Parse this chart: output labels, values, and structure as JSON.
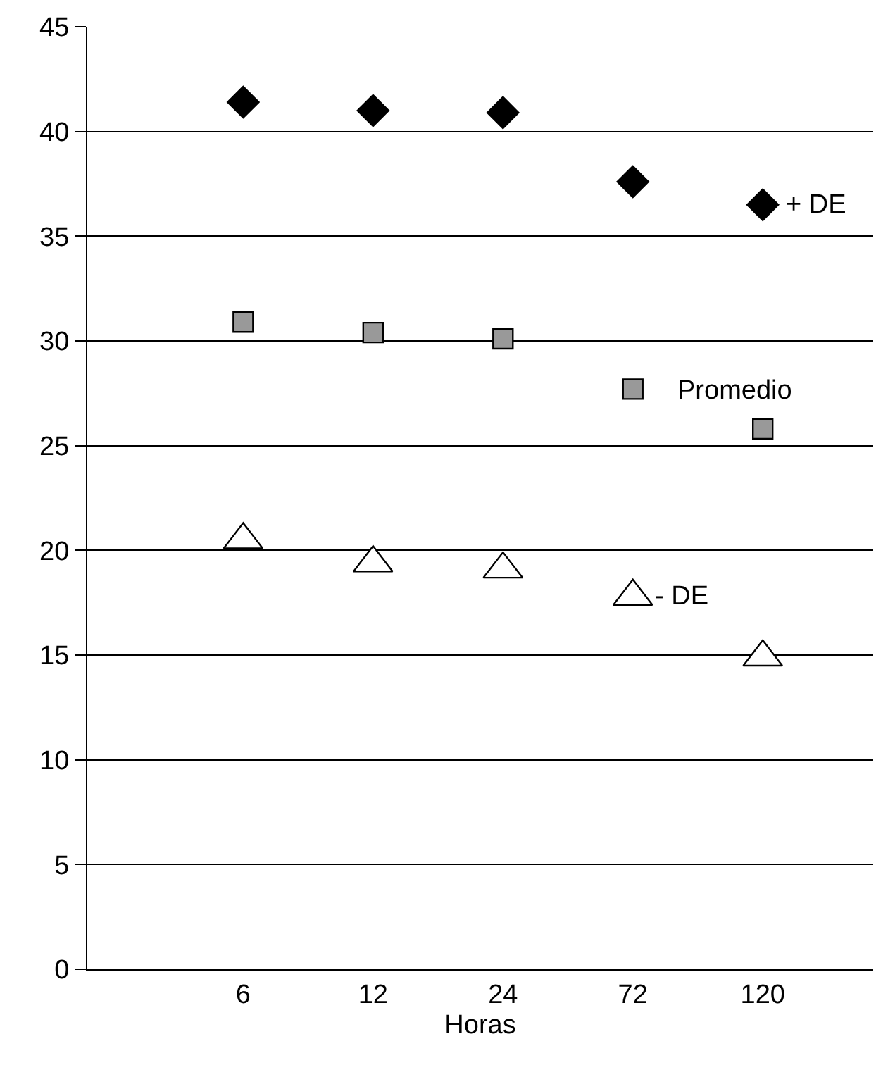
{
  "chart_data": {
    "type": "scatter",
    "xlabel": "Horas",
    "categories": [
      "6",
      "12",
      "24",
      "72",
      "120"
    ],
    "series": [
      {
        "name": "+ DE",
        "color": "#000000",
        "marker": "diamond",
        "values": [
          41.4,
          41.0,
          40.9,
          37.6,
          36.5
        ]
      },
      {
        "name": "Promedio",
        "color": "#999999",
        "marker": "square",
        "values": [
          30.9,
          30.4,
          30.1,
          27.7,
          25.8
        ]
      },
      {
        "name": "- DE",
        "color": "#ffffff",
        "marker": "triangle",
        "values": [
          20.5,
          19.4,
          19.1,
          17.8,
          14.9
        ]
      }
    ],
    "ylim": [
      0,
      45
    ],
    "yticks": [
      0,
      5,
      10,
      15,
      20,
      25,
      30,
      35,
      40,
      45
    ],
    "grid": "y",
    "legend": false
  }
}
